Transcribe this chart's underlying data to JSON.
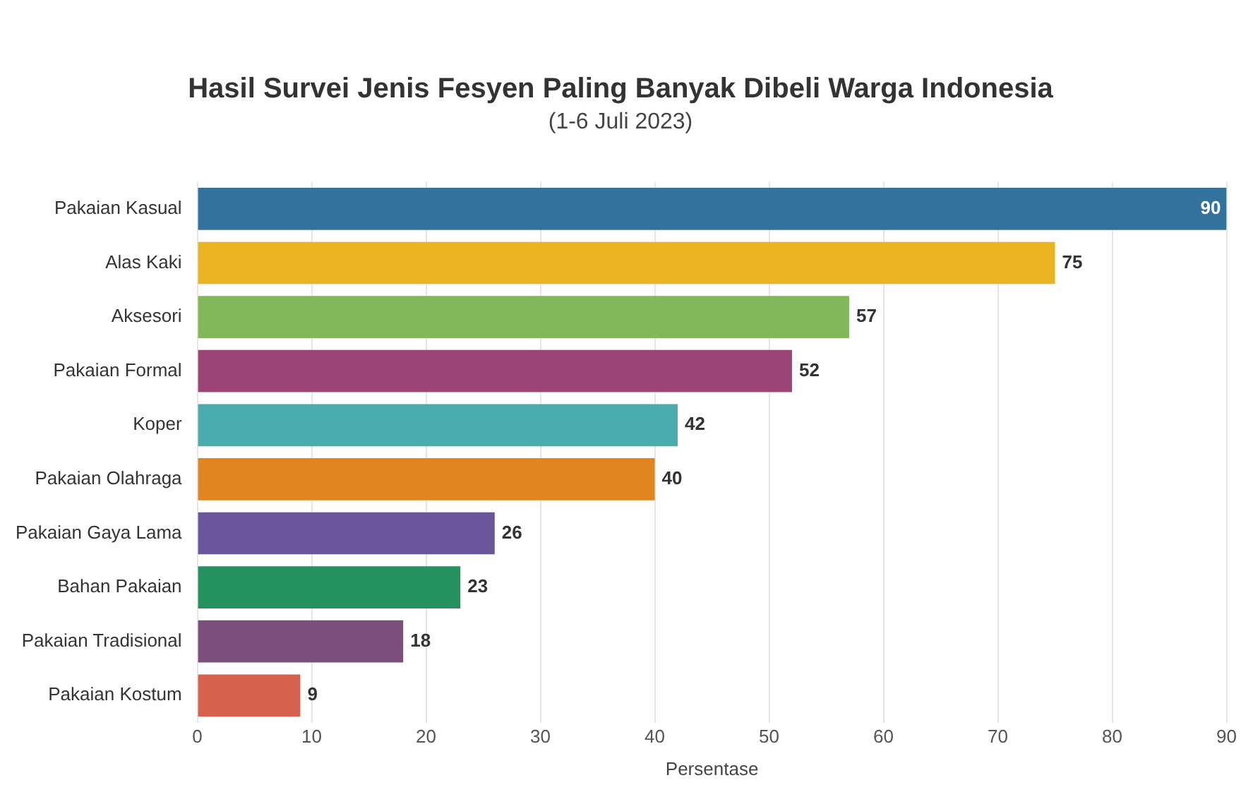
{
  "chart_data": {
    "type": "bar",
    "orientation": "horizontal",
    "title": "Hasil Survei Jenis Fesyen Paling Banyak Dibeli Warga Indonesia",
    "subtitle": "(1-6 Juli 2023)",
    "xlabel": "Persentase",
    "categories": [
      "Pakaian Kasual",
      "Alas Kaki",
      "Aksesori",
      "Pakaian Formal",
      "Koper",
      "Pakaian Olahraga",
      "Pakaian Gaya Lama",
      "Bahan Pakaian",
      "Pakaian Tradisional",
      "Pakaian Kostum"
    ],
    "values": [
      90,
      75,
      57,
      52,
      42,
      40,
      26,
      23,
      18,
      9
    ],
    "colors": [
      "#32729c",
      "#ecb421",
      "#82b75a",
      "#9c4677",
      "#4aabad",
      "#e1861f",
      "#6b559b",
      "#25915f",
      "#7b4e7c",
      "#d5614e"
    ],
    "xlim": [
      0,
      90
    ],
    "xticks": [
      0,
      10,
      20,
      30,
      40,
      50,
      60,
      70,
      80,
      90
    ],
    "grid": "x",
    "legend": false,
    "data_labels": true
  }
}
